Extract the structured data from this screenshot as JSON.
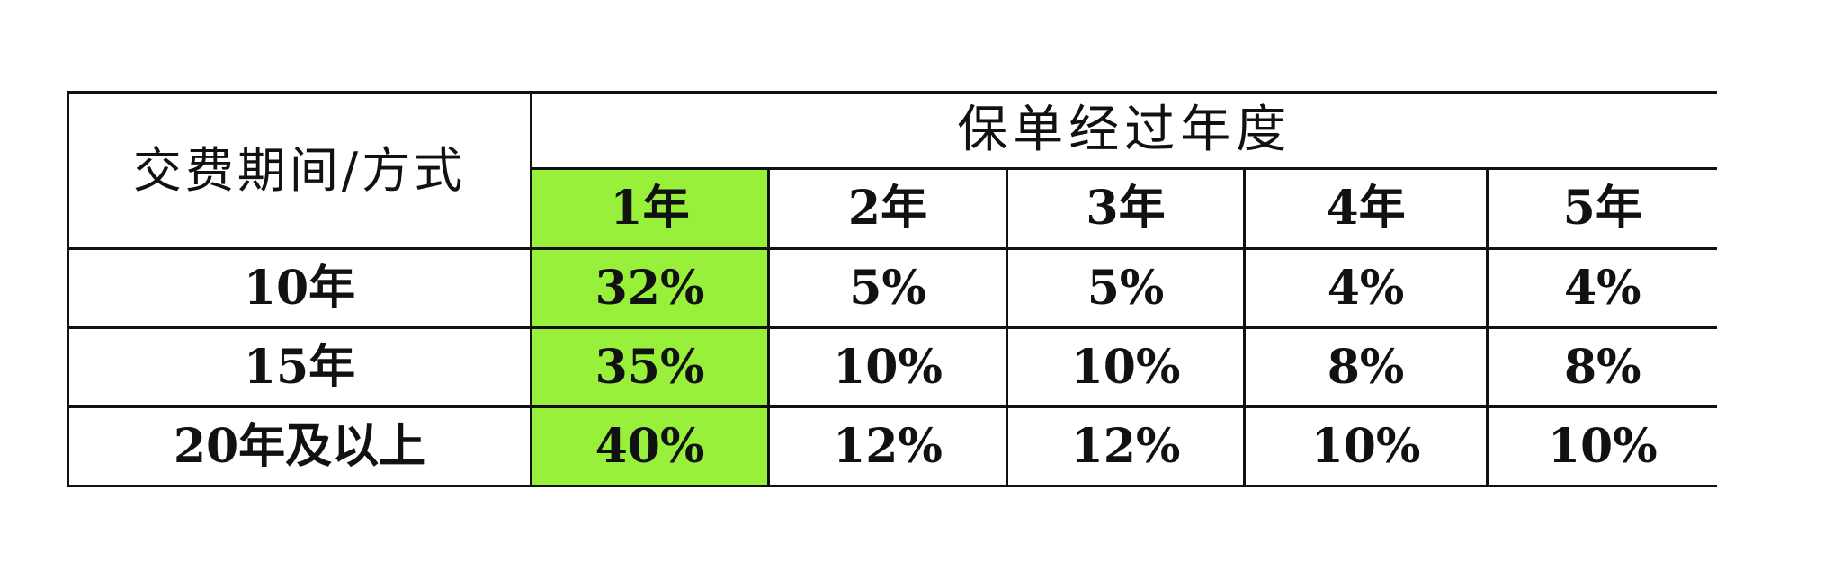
{
  "table": {
    "corner_label": "交费期间/方式",
    "group_header": "保单经过年度",
    "year_headers": [
      "1年",
      "2年",
      "3年",
      "4年",
      "5年"
    ],
    "rows": [
      {
        "label": "10年",
        "values": [
          "32%",
          "5%",
          "5%",
          "4%",
          "4%"
        ]
      },
      {
        "label": "15年",
        "values": [
          "35%",
          "10%",
          "10%",
          "8%",
          "8%"
        ]
      },
      {
        "label": "20年及以上",
        "values": [
          "40%",
          "12%",
          "12%",
          "10%",
          "10%"
        ]
      }
    ],
    "highlight_column": "1年",
    "highlight_color": "#98f03a",
    "border_color": "#111111"
  }
}
